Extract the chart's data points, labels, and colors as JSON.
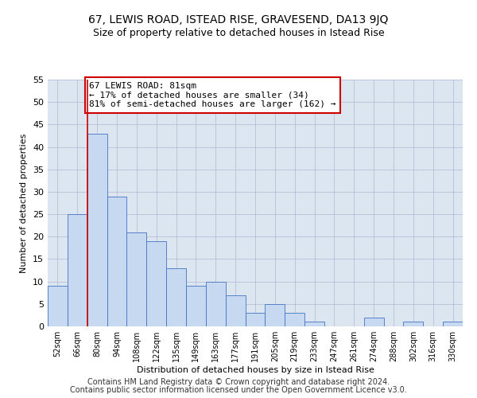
{
  "title1": "67, LEWIS ROAD, ISTEAD RISE, GRAVESEND, DA13 9JQ",
  "title2": "Size of property relative to detached houses in Istead Rise",
  "xlabel_bottom": "Distribution of detached houses by size in Istead Rise",
  "ylabel": "Number of detached properties",
  "footer1": "Contains HM Land Registry data © Crown copyright and database right 2024.",
  "footer2": "Contains public sector information licensed under the Open Government Licence v3.0.",
  "annotation_line1": "67 LEWIS ROAD: 81sqm",
  "annotation_line2": "← 17% of detached houses are smaller (34)",
  "annotation_line3": "81% of semi-detached houses are larger (162) →",
  "bar_labels": [
    "52sqm",
    "66sqm",
    "80sqm",
    "94sqm",
    "108sqm",
    "122sqm",
    "135sqm",
    "149sqm",
    "163sqm",
    "177sqm",
    "191sqm",
    "205sqm",
    "219sqm",
    "233sqm",
    "247sqm",
    "261sqm",
    "274sqm",
    "288sqm",
    "302sqm",
    "316sqm",
    "330sqm"
  ],
  "bar_values": [
    9,
    25,
    43,
    29,
    21,
    19,
    13,
    9,
    10,
    7,
    3,
    5,
    3,
    1,
    0,
    0,
    2,
    0,
    1,
    0,
    1
  ],
  "bar_color": "#c6d9f0",
  "bar_edge_color": "#4472c4",
  "vline_x_index": 1.5,
  "vline_color": "#cc0000",
  "annotation_box_color": "#cc0000",
  "ylim": [
    0,
    55
  ],
  "yticks": [
    0,
    5,
    10,
    15,
    20,
    25,
    30,
    35,
    40,
    45,
    50,
    55
  ],
  "grid_color": "#b0b8d0",
  "bg_color": "#dce6f1",
  "title1_fontsize": 10,
  "title2_fontsize": 9,
  "axis_label_fontsize": 8,
  "tick_fontsize": 8,
  "annotation_fontsize": 8,
  "footer_fontsize": 7
}
